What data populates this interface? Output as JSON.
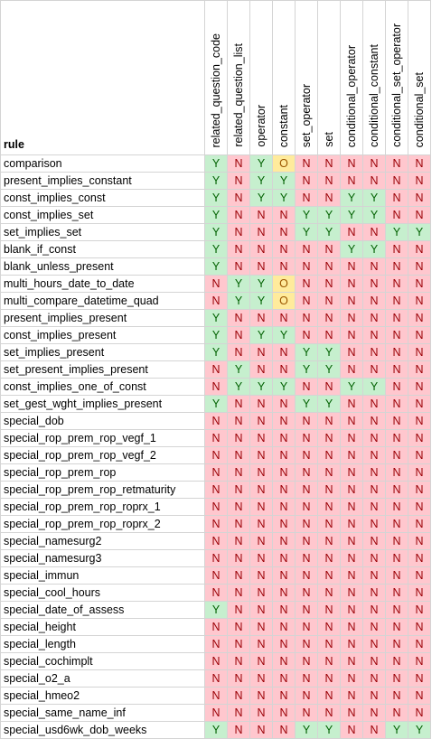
{
  "header": {
    "rule_label": "rule",
    "columns": [
      "related_question_code",
      "related_question_list",
      "operator",
      "constant",
      "set_operator",
      "set",
      "conditional_operator",
      "conditional_constant",
      "conditional_set_operator",
      "conditional_set"
    ]
  },
  "rows": [
    {
      "rule": "comparison",
      "values": [
        "Y",
        "N",
        "Y",
        "O",
        "N",
        "N",
        "N",
        "N",
        "N",
        "N"
      ]
    },
    {
      "rule": "present_implies_constant",
      "values": [
        "Y",
        "N",
        "Y",
        "Y",
        "N",
        "N",
        "N",
        "N",
        "N",
        "N"
      ]
    },
    {
      "rule": "const_implies_const",
      "values": [
        "Y",
        "N",
        "Y",
        "Y",
        "N",
        "N",
        "Y",
        "Y",
        "N",
        "N"
      ]
    },
    {
      "rule": "const_implies_set",
      "values": [
        "Y",
        "N",
        "N",
        "N",
        "Y",
        "Y",
        "Y",
        "Y",
        "N",
        "N"
      ]
    },
    {
      "rule": "set_implies_set",
      "values": [
        "Y",
        "N",
        "N",
        "N",
        "Y",
        "Y",
        "N",
        "N",
        "Y",
        "Y"
      ]
    },
    {
      "rule": "blank_if_const",
      "values": [
        "Y",
        "N",
        "N",
        "N",
        "N",
        "N",
        "Y",
        "Y",
        "N",
        "N"
      ]
    },
    {
      "rule": "blank_unless_present",
      "values": [
        "Y",
        "N",
        "N",
        "N",
        "N",
        "N",
        "N",
        "N",
        "N",
        "N"
      ]
    },
    {
      "rule": "multi_hours_date_to_date",
      "values": [
        "N",
        "Y",
        "Y",
        "O",
        "N",
        "N",
        "N",
        "N",
        "N",
        "N"
      ]
    },
    {
      "rule": "multi_compare_datetime_quad",
      "values": [
        "N",
        "Y",
        "Y",
        "O",
        "N",
        "N",
        "N",
        "N",
        "N",
        "N"
      ]
    },
    {
      "rule": "present_implies_present",
      "values": [
        "Y",
        "N",
        "N",
        "N",
        "N",
        "N",
        "N",
        "N",
        "N",
        "N"
      ]
    },
    {
      "rule": "const_implies_present",
      "values": [
        "Y",
        "N",
        "Y",
        "Y",
        "N",
        "N",
        "N",
        "N",
        "N",
        "N"
      ]
    },
    {
      "rule": "set_implies_present",
      "values": [
        "Y",
        "N",
        "N",
        "N",
        "Y",
        "Y",
        "N",
        "N",
        "N",
        "N"
      ]
    },
    {
      "rule": "set_present_implies_present",
      "values": [
        "N",
        "Y",
        "N",
        "N",
        "Y",
        "Y",
        "N",
        "N",
        "N",
        "N"
      ]
    },
    {
      "rule": "const_implies_one_of_const",
      "values": [
        "N",
        "Y",
        "Y",
        "Y",
        "N",
        "N",
        "Y",
        "Y",
        "N",
        "N"
      ]
    },
    {
      "rule": "set_gest_wght_implies_present",
      "values": [
        "Y",
        "N",
        "N",
        "N",
        "Y",
        "Y",
        "N",
        "N",
        "N",
        "N"
      ]
    },
    {
      "rule": "special_dob",
      "values": [
        "N",
        "N",
        "N",
        "N",
        "N",
        "N",
        "N",
        "N",
        "N",
        "N"
      ]
    },
    {
      "rule": "special_rop_prem_rop_vegf_1",
      "values": [
        "N",
        "N",
        "N",
        "N",
        "N",
        "N",
        "N",
        "N",
        "N",
        "N"
      ]
    },
    {
      "rule": "special_rop_prem_rop_vegf_2",
      "values": [
        "N",
        "N",
        "N",
        "N",
        "N",
        "N",
        "N",
        "N",
        "N",
        "N"
      ]
    },
    {
      "rule": "special_rop_prem_rop",
      "values": [
        "N",
        "N",
        "N",
        "N",
        "N",
        "N",
        "N",
        "N",
        "N",
        "N"
      ]
    },
    {
      "rule": "special_rop_prem_rop_retmaturity",
      "values": [
        "N",
        "N",
        "N",
        "N",
        "N",
        "N",
        "N",
        "N",
        "N",
        "N"
      ]
    },
    {
      "rule": "special_rop_prem_rop_roprx_1",
      "values": [
        "N",
        "N",
        "N",
        "N",
        "N",
        "N",
        "N",
        "N",
        "N",
        "N"
      ]
    },
    {
      "rule": "special_rop_prem_rop_roprx_2",
      "values": [
        "N",
        "N",
        "N",
        "N",
        "N",
        "N",
        "N",
        "N",
        "N",
        "N"
      ]
    },
    {
      "rule": "special_namesurg2",
      "values": [
        "N",
        "N",
        "N",
        "N",
        "N",
        "N",
        "N",
        "N",
        "N",
        "N"
      ]
    },
    {
      "rule": "special_namesurg3",
      "values": [
        "N",
        "N",
        "N",
        "N",
        "N",
        "N",
        "N",
        "N",
        "N",
        "N"
      ]
    },
    {
      "rule": "special_immun",
      "values": [
        "N",
        "N",
        "N",
        "N",
        "N",
        "N",
        "N",
        "N",
        "N",
        "N"
      ]
    },
    {
      "rule": "special_cool_hours",
      "values": [
        "N",
        "N",
        "N",
        "N",
        "N",
        "N",
        "N",
        "N",
        "N",
        "N"
      ]
    },
    {
      "rule": "special_date_of_assess",
      "values": [
        "Y",
        "N",
        "N",
        "N",
        "N",
        "N",
        "N",
        "N",
        "N",
        "N"
      ]
    },
    {
      "rule": "special_height",
      "values": [
        "N",
        "N",
        "N",
        "N",
        "N",
        "N",
        "N",
        "N",
        "N",
        "N"
      ]
    },
    {
      "rule": "special_length",
      "values": [
        "N",
        "N",
        "N",
        "N",
        "N",
        "N",
        "N",
        "N",
        "N",
        "N"
      ]
    },
    {
      "rule": "special_cochimplt",
      "values": [
        "N",
        "N",
        "N",
        "N",
        "N",
        "N",
        "N",
        "N",
        "N",
        "N"
      ]
    },
    {
      "rule": "special_o2_a",
      "values": [
        "N",
        "N",
        "N",
        "N",
        "N",
        "N",
        "N",
        "N",
        "N",
        "N"
      ]
    },
    {
      "rule": "special_hmeo2",
      "values": [
        "N",
        "N",
        "N",
        "N",
        "N",
        "N",
        "N",
        "N",
        "N",
        "N"
      ]
    },
    {
      "rule": "special_same_name_inf",
      "values": [
        "N",
        "N",
        "N",
        "N",
        "N",
        "N",
        "N",
        "N",
        "N",
        "N"
      ]
    },
    {
      "rule": "special_usd6wk_dob_weeks",
      "values": [
        "Y",
        "N",
        "N",
        "N",
        "Y",
        "Y",
        "N",
        "N",
        "Y",
        "Y"
      ]
    }
  ],
  "colors": {
    "Y_fill": "#c6efce",
    "Y_text": "#006100",
    "N_fill": "#ffc7ce",
    "N_text": "#9c0006",
    "O_fill": "#ffeb9c",
    "O_text": "#9c5700"
  }
}
